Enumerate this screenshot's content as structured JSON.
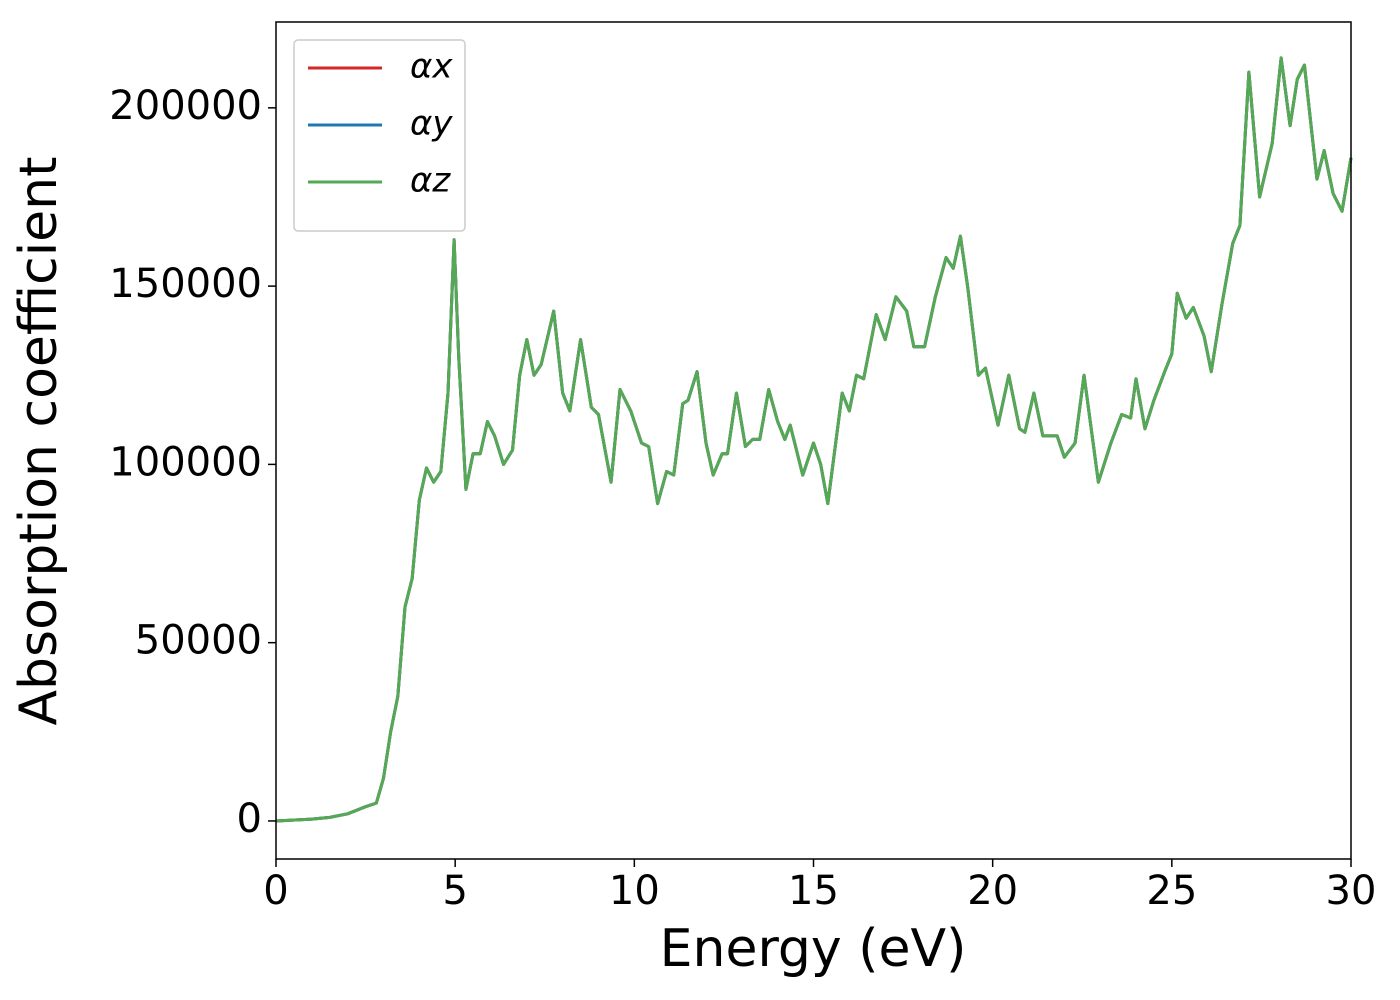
{
  "chart_data": {
    "type": "line",
    "xlabel": "Energy (eV)",
    "ylabel": "Absorption coefficient",
    "x": [
      0,
      1,
      1.5,
      2,
      2.5,
      2.8,
      3.0,
      3.2,
      3.4,
      3.6,
      3.8,
      4.0,
      4.2,
      4.4,
      4.6,
      4.8,
      4.97,
      5.1,
      5.3,
      5.5,
      5.7,
      5.9,
      6.1,
      6.35,
      6.6,
      6.8,
      7.0,
      7.2,
      7.4,
      7.75,
      8.0,
      8.2,
      8.5,
      8.8,
      9.0,
      9.35,
      9.6,
      9.9,
      10.2,
      10.4,
      10.65,
      10.9,
      11.1,
      11.35,
      11.5,
      11.75,
      12.0,
      12.2,
      12.45,
      12.6,
      12.85,
      13.1,
      13.3,
      13.5,
      13.75,
      14.0,
      14.2,
      14.35,
      14.7,
      15.0,
      15.2,
      15.4,
      15.8,
      16.0,
      16.2,
      16.4,
      16.75,
      17.0,
      17.3,
      17.6,
      17.8,
      18.1,
      18.4,
      18.7,
      18.9,
      19.1,
      19.3,
      19.6,
      19.8,
      20.15,
      20.45,
      20.75,
      20.9,
      21.15,
      21.4,
      21.8,
      22.0,
      22.3,
      22.55,
      22.95,
      23.3,
      23.6,
      23.85,
      24.0,
      24.25,
      24.5,
      24.8,
      25.0,
      25.15,
      25.4,
      25.6,
      25.9,
      26.1,
      26.4,
      26.7,
      26.9,
      27.15,
      27.45,
      27.8,
      28.05,
      28.3,
      28.5,
      28.7,
      29.05,
      29.25,
      29.5,
      29.75,
      30
    ],
    "series": [
      {
        "name": "αx",
        "color": "#d62728",
        "values": [
          0,
          500,
          1000,
          2000,
          4000,
          5000,
          12000,
          25000,
          35000,
          60000,
          68000,
          90000,
          99000,
          95000,
          98000,
          120000,
          163000,
          130000,
          93000,
          103000,
          103000,
          112000,
          108000,
          100000,
          104000,
          125000,
          135000,
          125000,
          128000,
          143000,
          120000,
          115000,
          135000,
          116000,
          114000,
          95000,
          121000,
          115000,
          106000,
          105000,
          89000,
          98000,
          97000,
          117000,
          118000,
          126000,
          106000,
          97000,
          103000,
          103000,
          120000,
          105000,
          107000,
          107000,
          121000,
          112000,
          107000,
          111000,
          97000,
          106000,
          100000,
          89000,
          120000,
          115000,
          125000,
          124000,
          142000,
          135000,
          147000,
          143000,
          133000,
          133000,
          147000,
          158000,
          155000,
          164000,
          150000,
          125000,
          127000,
          111000,
          125000,
          110000,
          109000,
          120000,
          108000,
          108000,
          102000,
          106000,
          125000,
          95000,
          106000,
          114000,
          113000,
          124000,
          110000,
          118000,
          126000,
          131000,
          148000,
          141000,
          144000,
          136000,
          126000,
          145000,
          162000,
          167000,
          210000,
          175000,
          190000,
          214000,
          195000,
          208000,
          212000,
          180000,
          188000,
          176000,
          171000,
          186000
        ]
      },
      {
        "name": "αy",
        "color": "#1f77b4",
        "values": [
          0,
          500,
          1000,
          2000,
          4000,
          5000,
          12000,
          25000,
          35000,
          60000,
          68000,
          90000,
          99000,
          95000,
          98000,
          120000,
          163000,
          130000,
          93000,
          103000,
          103000,
          112000,
          108000,
          100000,
          104000,
          125000,
          135000,
          125000,
          128000,
          143000,
          120000,
          115000,
          135000,
          116000,
          114000,
          95000,
          121000,
          115000,
          106000,
          105000,
          89000,
          98000,
          97000,
          117000,
          118000,
          126000,
          106000,
          97000,
          103000,
          103000,
          120000,
          105000,
          107000,
          107000,
          121000,
          112000,
          107000,
          111000,
          97000,
          106000,
          100000,
          89000,
          120000,
          115000,
          125000,
          124000,
          142000,
          135000,
          147000,
          143000,
          133000,
          133000,
          147000,
          158000,
          155000,
          164000,
          150000,
          125000,
          127000,
          111000,
          125000,
          110000,
          109000,
          120000,
          108000,
          108000,
          102000,
          106000,
          125000,
          95000,
          106000,
          114000,
          113000,
          124000,
          110000,
          118000,
          126000,
          131000,
          148000,
          141000,
          144000,
          136000,
          126000,
          145000,
          162000,
          167000,
          210000,
          175000,
          190000,
          214000,
          195000,
          208000,
          212000,
          180000,
          188000,
          176000,
          171000,
          186000
        ]
      },
      {
        "name": "αz",
        "color": "#55a955",
        "values": [
          0,
          500,
          1000,
          2000,
          4000,
          5000,
          12000,
          25000,
          35000,
          60000,
          68000,
          90000,
          99000,
          95000,
          98000,
          120000,
          163000,
          130000,
          93000,
          103000,
          103000,
          112000,
          108000,
          100000,
          104000,
          125000,
          135000,
          125000,
          128000,
          143000,
          120000,
          115000,
          135000,
          116000,
          114000,
          95000,
          121000,
          115000,
          106000,
          105000,
          89000,
          98000,
          97000,
          117000,
          118000,
          126000,
          106000,
          97000,
          103000,
          103000,
          120000,
          105000,
          107000,
          107000,
          121000,
          112000,
          107000,
          111000,
          97000,
          106000,
          100000,
          89000,
          120000,
          115000,
          125000,
          124000,
          142000,
          135000,
          147000,
          143000,
          133000,
          133000,
          147000,
          158000,
          155000,
          164000,
          150000,
          125000,
          127000,
          111000,
          125000,
          110000,
          109000,
          120000,
          108000,
          108000,
          102000,
          106000,
          125000,
          95000,
          106000,
          114000,
          113000,
          124000,
          110000,
          118000,
          126000,
          131000,
          148000,
          141000,
          144000,
          136000,
          126000,
          145000,
          162000,
          167000,
          210000,
          175000,
          190000,
          214000,
          195000,
          208000,
          212000,
          180000,
          188000,
          176000,
          171000,
          186000
        ]
      }
    ],
    "xlim": [
      0,
      30
    ],
    "xticks": [
      0,
      5,
      10,
      15,
      20,
      25,
      30
    ],
    "ylim": [
      -10670,
      224070
    ],
    "yticks": [
      0,
      50000,
      100000,
      150000,
      200000
    ],
    "grid": false,
    "legend": "upper left"
  }
}
